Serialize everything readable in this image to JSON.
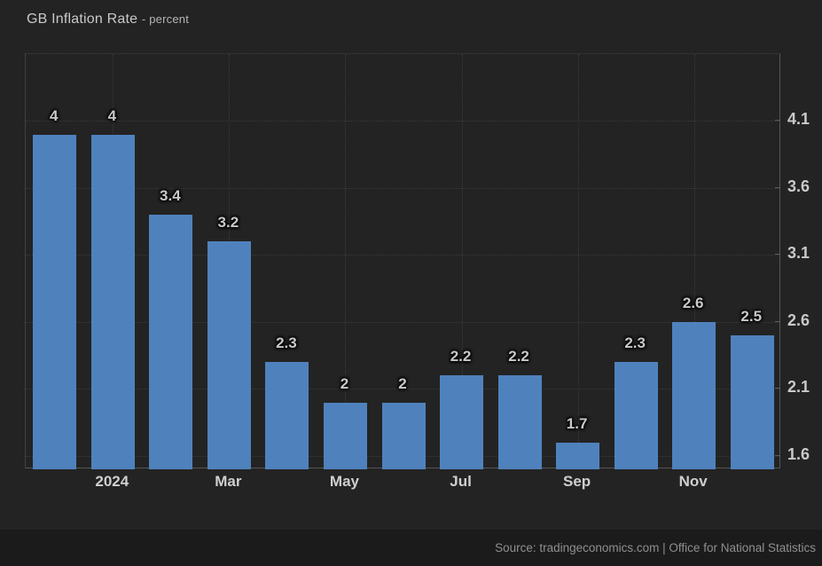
{
  "header": {
    "title": "GB Inflation Rate",
    "subtitle": "- percent"
  },
  "footer": {
    "source": "Source: tradingeconomics.com | Office for National Statistics"
  },
  "colors": {
    "background": "#232323",
    "footer_background": "#1b1b1b",
    "bar": "#4f82bd",
    "grid": "#3a3a3a",
    "axis": "#555555",
    "text": "#c9c9c9",
    "muted_text": "#8f8f8f"
  },
  "chart_data": {
    "type": "bar",
    "title": "GB Inflation Rate",
    "ylabel": "percent",
    "values": [
      4,
      4,
      3.4,
      3.2,
      2.3,
      2,
      2,
      2.2,
      2.2,
      1.7,
      2.3,
      2.6,
      2.5
    ],
    "value_labels": [
      "4",
      "4",
      "3.4",
      "3.2",
      "2.3",
      "2",
      "2",
      "2.2",
      "2.2",
      "1.7",
      "2.3",
      "2.6",
      "2.5"
    ],
    "x_ticks": [
      {
        "index": 1,
        "label": "2024"
      },
      {
        "index": 3,
        "label": "Mar"
      },
      {
        "index": 5,
        "label": "May"
      },
      {
        "index": 7,
        "label": "Jul"
      },
      {
        "index": 9,
        "label": "Sep"
      },
      {
        "index": 11,
        "label": "Nov"
      }
    ],
    "y_ticks": [
      4.1,
      3.6,
      3.1,
      2.6,
      2.1,
      1.6
    ],
    "ylim": [
      1.5,
      4.6
    ],
    "grid": true,
    "y_axis_side": "right",
    "legend": null
  }
}
